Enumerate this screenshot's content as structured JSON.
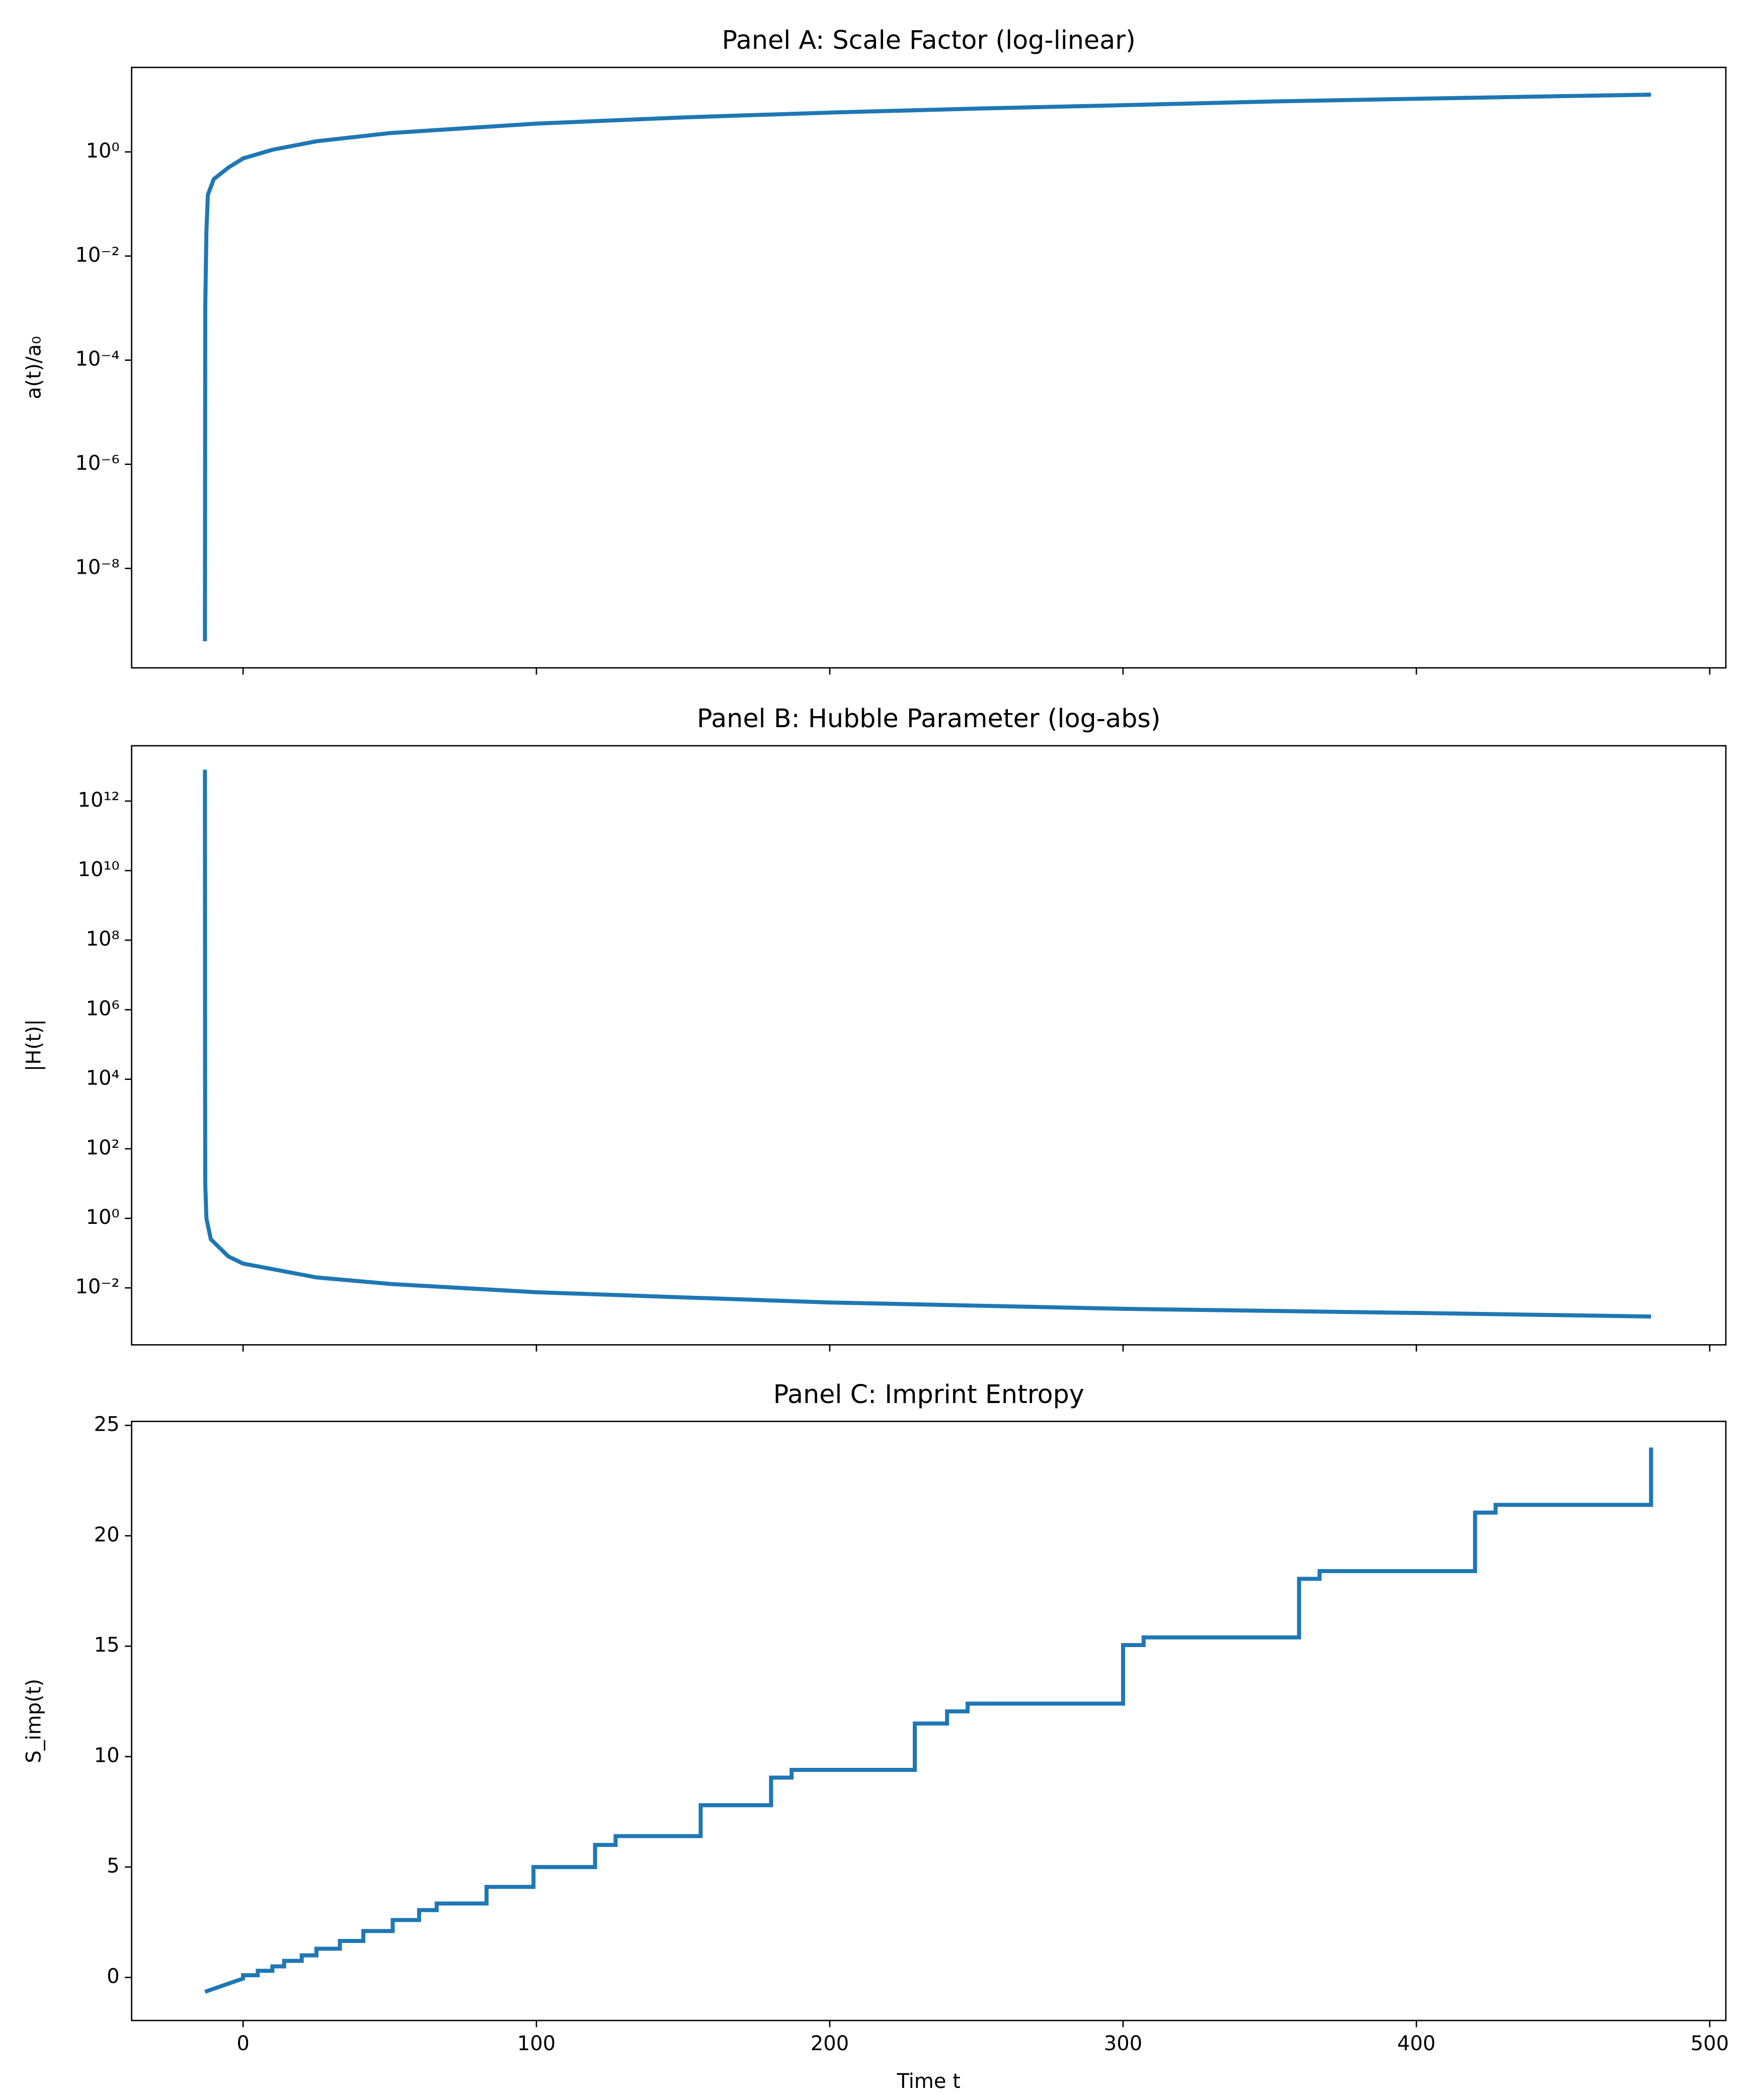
{
  "chart_data": [
    {
      "type": "line",
      "title": "Panel A: Scale Factor (log-linear)",
      "ylabel": "a(t)/a₀",
      "ylog": true,
      "xlim": [
        -38,
        505.5
      ],
      "xticks": [
        0,
        100,
        200,
        300,
        400,
        500
      ],
      "show_xticklabels": false,
      "ylim": [
        1.23e-10,
        42
      ],
      "yticks": [
        {
          "value": 1e-08,
          "label": "10⁻⁸"
        },
        {
          "value": 1e-06,
          "label": "10⁻⁶"
        },
        {
          "value": 0.0001,
          "label": "10⁻⁴"
        },
        {
          "value": 0.01,
          "label": "10⁻²"
        },
        {
          "value": 1,
          "label": "10⁰"
        }
      ],
      "series": [
        {
          "color": "#1f77b4",
          "x": [
            -13,
            -12.9,
            -12.5,
            -12,
            -10,
            -5,
            0,
            10,
            25,
            50,
            100,
            150,
            200,
            250,
            300,
            350,
            400,
            450,
            480
          ],
          "values": [
            4e-10,
            0.001,
            0.03,
            0.15,
            0.3,
            0.5,
            0.75,
            1.1,
            1.6,
            2.3,
            3.5,
            4.6,
            5.7,
            6.8,
            7.9,
            9.3,
            10.5,
            11.8,
            12.6
          ]
        }
      ]
    },
    {
      "type": "line",
      "title": "Panel B: Hubble Parameter (log-abs)",
      "ylabel": "|H(t)|",
      "ylog": true,
      "xlim": [
        -38,
        505.5
      ],
      "xticks": [
        0,
        100,
        200,
        300,
        400,
        500
      ],
      "show_xticklabels": false,
      "ylim": [
        0.00023,
        39000000000000.0
      ],
      "yticks": [
        {
          "value": 0.01,
          "label": "10⁻²"
        },
        {
          "value": 1,
          "label": "10⁰"
        },
        {
          "value": 100,
          "label": "10²"
        },
        {
          "value": 10000,
          "label": "10⁴"
        },
        {
          "value": 1000000,
          "label": "10⁶"
        },
        {
          "value": 100000000,
          "label": "10⁸"
        },
        {
          "value": 10000000000,
          "label": "10¹⁰"
        },
        {
          "value": 1000000000000,
          "label": "10¹²"
        }
      ],
      "series": [
        {
          "color": "#1f77b4",
          "x": [
            -13,
            -12.95,
            -12.9,
            -12.5,
            -11,
            -5,
            0,
            25,
            50,
            100,
            200,
            300,
            400,
            480
          ],
          "values": [
            8000000000000.0,
            10000,
            10,
            1,
            0.25,
            0.08,
            0.05,
            0.02,
            0.013,
            0.0075,
            0.0038,
            0.0025,
            0.0019,
            0.0015
          ]
        }
      ]
    },
    {
      "type": "line",
      "title": "Panel C: Imprint Entropy",
      "ylabel": "S_imp(t)",
      "xlabel": "Time t",
      "ylog": false,
      "xlim": [
        -38,
        505.5
      ],
      "xticks": [
        0,
        100,
        200,
        300,
        400,
        500
      ],
      "show_xticklabels": true,
      "ylim": [
        -1.95,
        25.18
      ],
      "yticks": [
        0,
        5,
        10,
        15,
        20,
        25
      ],
      "series": [
        {
          "color": "#1f77b4",
          "x": [
            -13,
            0,
            0,
            5,
            5,
            10,
            10,
            14,
            14,
            20,
            20,
            25,
            25,
            33,
            33,
            41,
            41,
            51,
            51,
            60,
            60,
            66,
            66,
            83,
            83,
            99,
            99,
            120,
            120,
            127,
            127,
            156,
            156,
            180,
            180,
            187,
            187,
            229,
            229,
            240,
            240,
            247,
            247,
            300,
            300,
            307,
            307,
            360,
            360,
            367,
            367,
            420,
            420,
            427,
            427,
            480,
            480
          ],
          "values": [
            -0.65,
            -0.05,
            0.1,
            0.1,
            0.3,
            0.3,
            0.5,
            0.5,
            0.75,
            0.75,
            1.0,
            1.0,
            1.3,
            1.3,
            1.65,
            1.65,
            2.1,
            2.1,
            2.6,
            2.6,
            3.05,
            3.05,
            3.35,
            3.35,
            4.1,
            4.1,
            5.0,
            5.0,
            6.0,
            6.0,
            6.4,
            6.4,
            7.8,
            7.8,
            9.05,
            9.05,
            9.4,
            9.4,
            11.5,
            11.5,
            12.05,
            12.05,
            12.4,
            12.4,
            15.05,
            15.05,
            15.4,
            15.4,
            18.05,
            18.05,
            18.4,
            18.4,
            21.05,
            21.05,
            21.4,
            21.4,
            24.0
          ]
        }
      ]
    }
  ]
}
